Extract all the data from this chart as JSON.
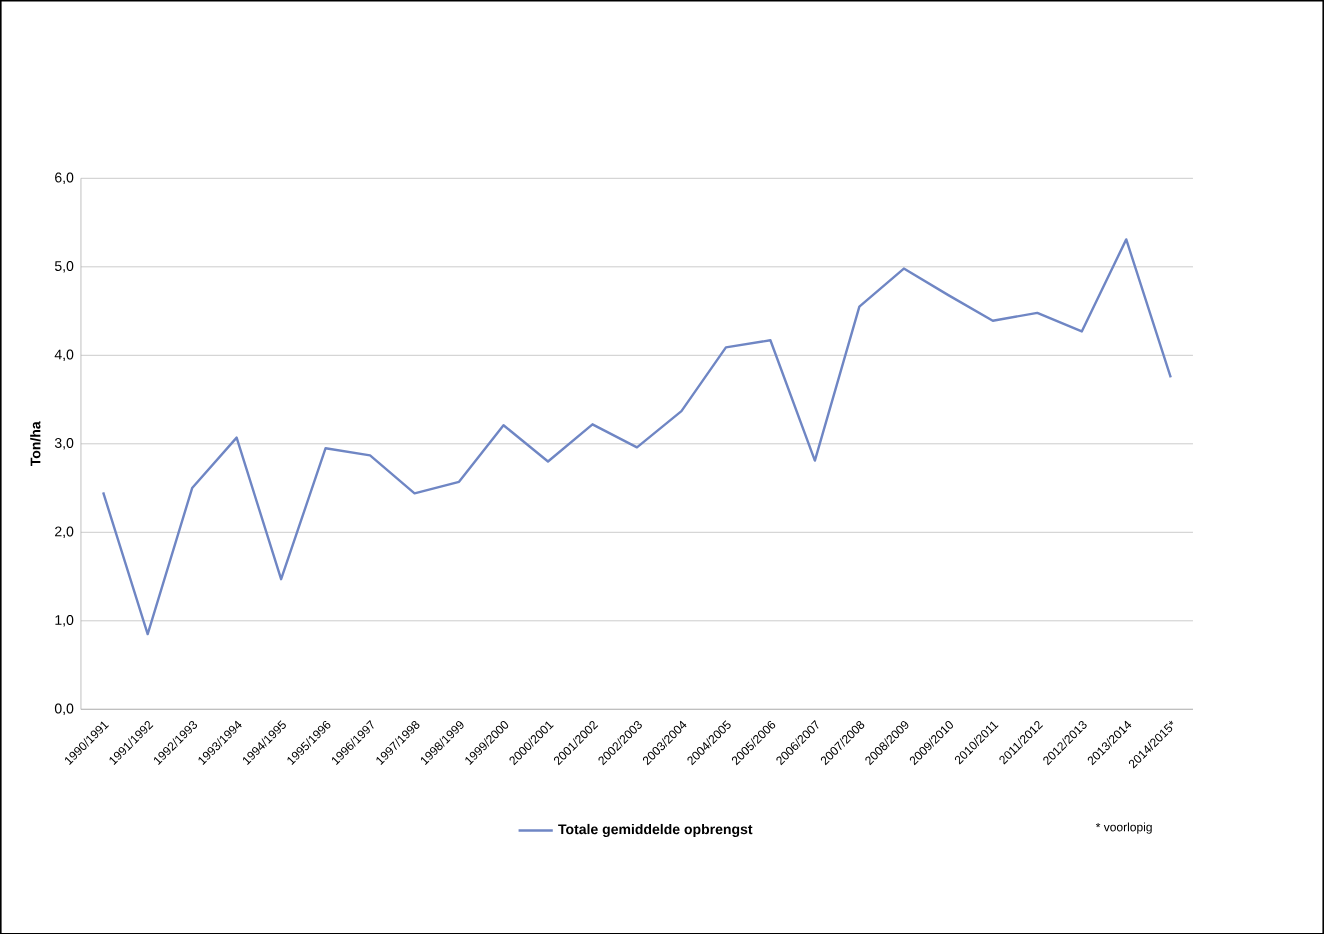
{
  "chart_data": {
    "type": "line",
    "ylabel": "Ton/ha",
    "categories": [
      "1990/1991",
      "1991/1992",
      "1992/1993",
      "1993/1994",
      "1994/1995",
      "1995/1996",
      "1996/1997",
      "1997/1998",
      "1998/1999",
      "1999/2000",
      "2000/2001",
      "2001/2002",
      "2002/2003",
      "2003/2004",
      "2004/2005",
      "2005/2006",
      "2006/2007",
      "2007/2008",
      "2008/2009",
      "2009/2010",
      "2010/2011",
      "2011/2012",
      "2012/2013",
      "2013/2014",
      "2014/2015*"
    ],
    "series": [
      {
        "name": "Totale gemiddelde opbrengst",
        "color": "#6f86c4",
        "values": [
          2.45,
          0.85,
          2.5,
          3.07,
          1.47,
          2.95,
          2.87,
          2.44,
          2.57,
          3.21,
          2.8,
          3.22,
          2.96,
          3.37,
          4.09,
          4.17,
          2.81,
          4.55,
          4.98,
          4.68,
          4.39,
          4.48,
          4.27,
          5.31,
          3.75
        ]
      }
    ],
    "ylim": [
      0,
      6
    ],
    "yticks": [
      {
        "value": 0,
        "label": "0,0"
      },
      {
        "value": 1,
        "label": "1,0"
      },
      {
        "value": 2,
        "label": "2,0"
      },
      {
        "value": 3,
        "label": "3,0"
      },
      {
        "value": 4,
        "label": "4,0"
      },
      {
        "value": 5,
        "label": "5,0"
      },
      {
        "value": 6,
        "label": "6,0"
      }
    ],
    "grid": "y",
    "legend": "bottom",
    "marker": "none",
    "line_style": "solid",
    "annotations": [
      "* voorlopig"
    ]
  }
}
